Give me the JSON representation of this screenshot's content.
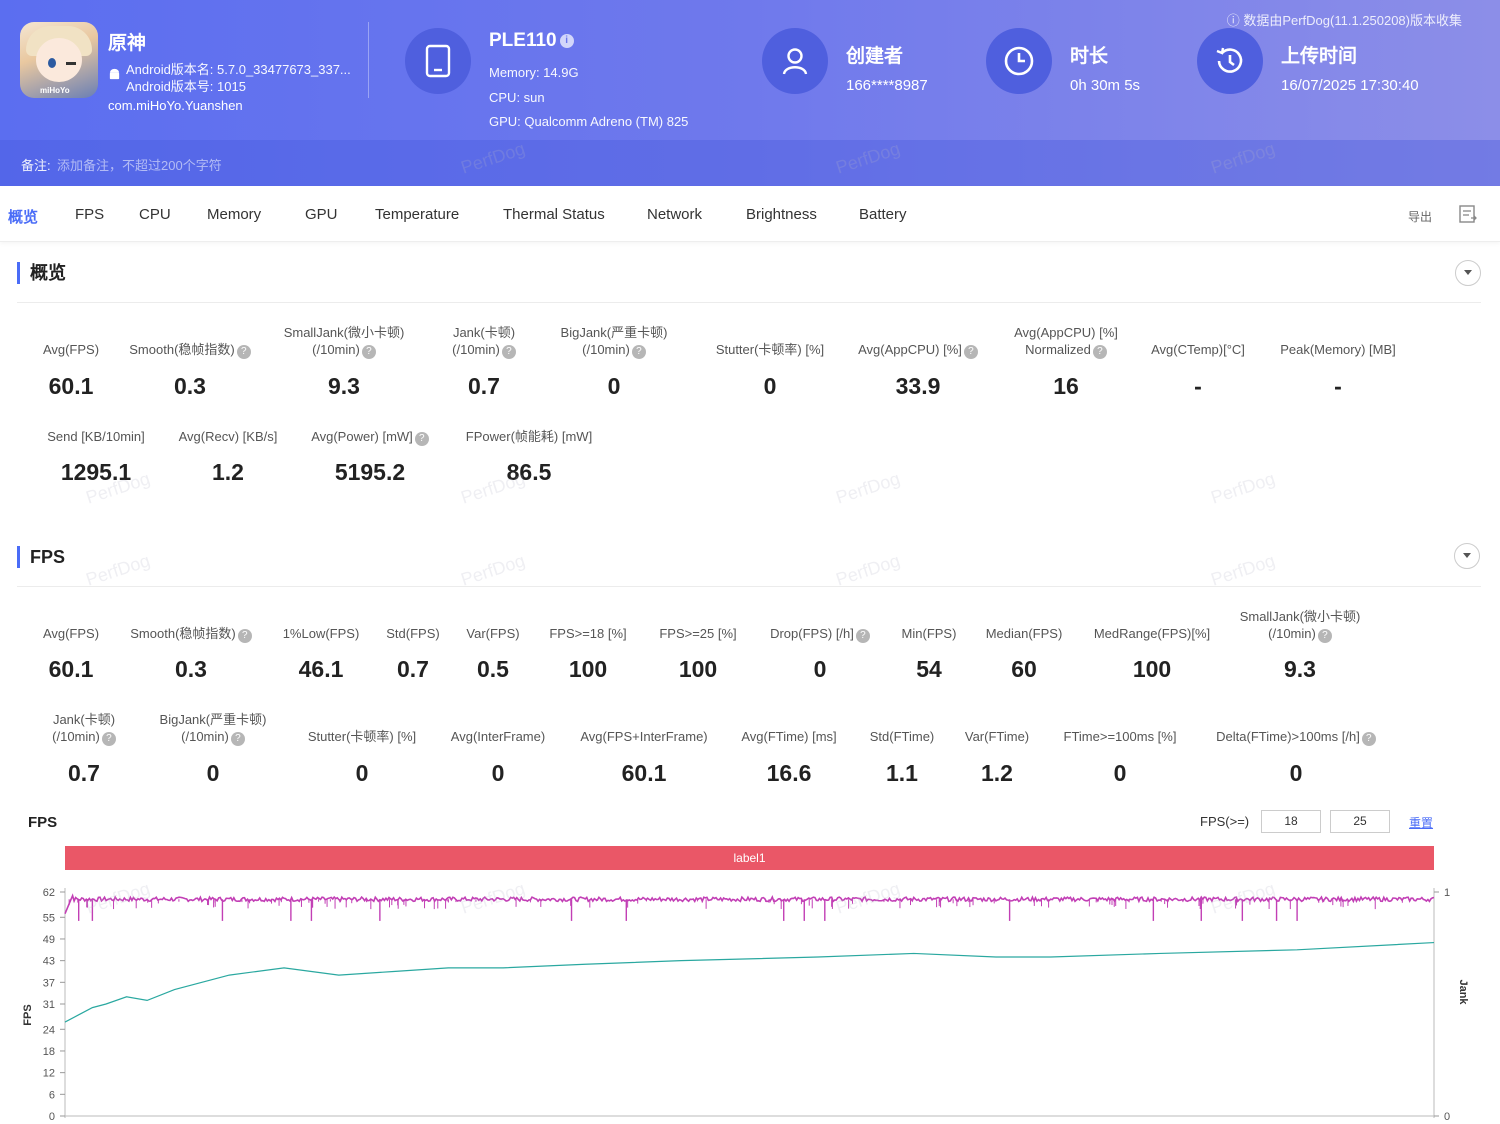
{
  "header": {
    "data_note": "数据由PerfDog(11.1.250208)版本收集",
    "app_icon_label": "miHoYo",
    "app_name": "原神",
    "android_version_name": "Android版本名: 5.7.0_33477673_337...",
    "android_version_code": "Android版本号: 1015",
    "package": "com.miHoYo.Yuanshen",
    "device_name": "PLE110",
    "memory": "Memory: 14.9G",
    "cpu": "CPU: sun",
    "gpu": "GPU: Qualcomm Adreno (TM) 825",
    "creator_label": "创建者",
    "creator_value": "166****8987",
    "duration_label": "时长",
    "duration_value": "0h 30m 5s",
    "upload_label": "上传时间",
    "upload_value": "16/07/2025 17:30:40",
    "note_label": "备注:",
    "note_placeholder": "添加备注，不超过200个字符"
  },
  "tabs": [
    "概览",
    "FPS",
    "CPU",
    "Memory",
    "GPU",
    "Temperature",
    "Thermal Status",
    "Network",
    "Brightness",
    "Battery"
  ],
  "export_label": "导出",
  "watermark": "PerfDog",
  "overview": {
    "title": "概览",
    "row1": [
      {
        "label": "Avg(FPS)",
        "value": "60.1",
        "help": false
      },
      {
        "label": "Smooth(稳帧指数)",
        "value": "0.3",
        "help": true
      },
      {
        "label": "SmallJank(微小卡顿)",
        "label2": "(/10min)",
        "value": "9.3",
        "help": true
      },
      {
        "label": "Jank(卡顿)",
        "label2": "(/10min)",
        "value": "0.7",
        "help": true
      },
      {
        "label": "BigJank(严重卡顿)",
        "label2": "(/10min)",
        "value": "0",
        "help": true
      },
      {
        "label": "Stutter(卡顿率) [%]",
        "value": "0",
        "help": false
      },
      {
        "label": "Avg(AppCPU) [%]",
        "value": "33.9",
        "help": true
      },
      {
        "label": "Avg(AppCPU) [%]",
        "label2": "Normalized",
        "value": "16",
        "help": true
      },
      {
        "label": "Avg(CTemp)[°C]",
        "value": "-",
        "help": false
      },
      {
        "label": "Peak(Memory) [MB]",
        "value": "-",
        "help": false
      }
    ],
    "row2": [
      {
        "label": "Send [KB/10min]",
        "value": "1295.1",
        "help": false
      },
      {
        "label": "Avg(Recv) [KB/s]",
        "value": "1.2",
        "help": false
      },
      {
        "label": "Avg(Power) [mW]",
        "value": "5195.2",
        "help": true
      },
      {
        "label": "FPower(帧能耗) [mW]",
        "value": "86.5",
        "help": false
      }
    ]
  },
  "fps_section": {
    "title": "FPS",
    "row1": [
      {
        "label": "Avg(FPS)",
        "value": "60.1",
        "help": false
      },
      {
        "label": "Smooth(稳帧指数)",
        "value": "0.3",
        "help": true
      },
      {
        "label": "1%Low(FPS)",
        "value": "46.1",
        "help": false
      },
      {
        "label": "Std(FPS)",
        "value": "0.7",
        "help": false
      },
      {
        "label": "Var(FPS)",
        "value": "0.5",
        "help": false
      },
      {
        "label": "FPS>=18 [%]",
        "value": "100",
        "help": false
      },
      {
        "label": "FPS>=25 [%]",
        "value": "100",
        "help": false
      },
      {
        "label": "Drop(FPS) [/h]",
        "value": "0",
        "help": true
      },
      {
        "label": "Min(FPS)",
        "value": "54",
        "help": false
      },
      {
        "label": "Median(FPS)",
        "value": "60",
        "help": false
      },
      {
        "label": "MedRange(FPS)[%]",
        "value": "100",
        "help": false
      },
      {
        "label": "SmallJank(微小卡顿)",
        "label2": "(/10min)",
        "value": "9.3",
        "help": true
      }
    ],
    "row2": [
      {
        "label": "Jank(卡顿)",
        "label2": "(/10min)",
        "value": "0.7",
        "help": true
      },
      {
        "label": "BigJank(严重卡顿)",
        "label2": "(/10min)",
        "value": "0",
        "help": true
      },
      {
        "label": "Stutter(卡顿率) [%]",
        "value": "0",
        "help": false
      },
      {
        "label": "Avg(InterFrame)",
        "value": "0",
        "help": false
      },
      {
        "label": "Avg(FPS+InterFrame)",
        "value": "60.1",
        "help": false
      },
      {
        "label": "Avg(FTime) [ms]",
        "value": "16.6",
        "help": false
      },
      {
        "label": "Std(FTime)",
        "value": "1.1",
        "help": false
      },
      {
        "label": "Var(FTime)",
        "value": "1.2",
        "help": false
      },
      {
        "label": "FTime>=100ms [%]",
        "value": "0",
        "help": false
      },
      {
        "label": "Delta(FTime)>100ms [/h]",
        "value": "0",
        "help": true
      }
    ]
  },
  "chart": {
    "title": "FPS",
    "threshold_label": "FPS(>=)",
    "threshold_1": "18",
    "threshold_2": "25",
    "reset_label": "重置",
    "label_bar": "label1"
  },
  "colors": {
    "accent": "#4a6cf7",
    "fps_series": "#c23fb5",
    "smooth_series": "#2aa8a0",
    "label_bar": "#ea5767"
  },
  "chart_data": {
    "type": "line",
    "ylabel": "FPS",
    "y2label": "Jank",
    "y_ticks": [
      0,
      6,
      12,
      18,
      24,
      31,
      37,
      43,
      49,
      55,
      62
    ],
    "ylim": [
      0,
      62
    ],
    "y2_ticks": [
      0,
      1
    ],
    "y2lim": [
      0,
      1
    ],
    "x_range_minutes": [
      0,
      30.08
    ],
    "series": [
      {
        "values_description_free": true,
        "fps_level": 60,
        "fps_min": 54,
        "dip_positions_fraction": [
          0.01,
          0.02,
          0.115,
          0.165,
          0.18,
          0.23,
          0.37,
          0.41,
          0.525,
          0.54,
          0.555,
          0.69,
          0.795,
          0.83,
          0.86,
          0.885,
          0.9
        ]
      },
      {
        "x_fraction": [
          0,
          0.01,
          0.02,
          0.03,
          0.045,
          0.06,
          0.08,
          0.1,
          0.12,
          0.14,
          0.16,
          0.18,
          0.2,
          0.24,
          0.28,
          0.32,
          0.38,
          0.45,
          0.55,
          0.62,
          0.68,
          0.72,
          0.8,
          0.9,
          1.0
        ],
        "values": [
          26,
          28,
          30,
          31,
          33,
          32,
          35,
          37,
          39,
          40,
          41,
          40,
          39,
          40,
          41,
          41,
          42,
          43,
          44,
          45,
          44,
          44,
          45,
          46,
          48
        ]
      }
    ]
  }
}
